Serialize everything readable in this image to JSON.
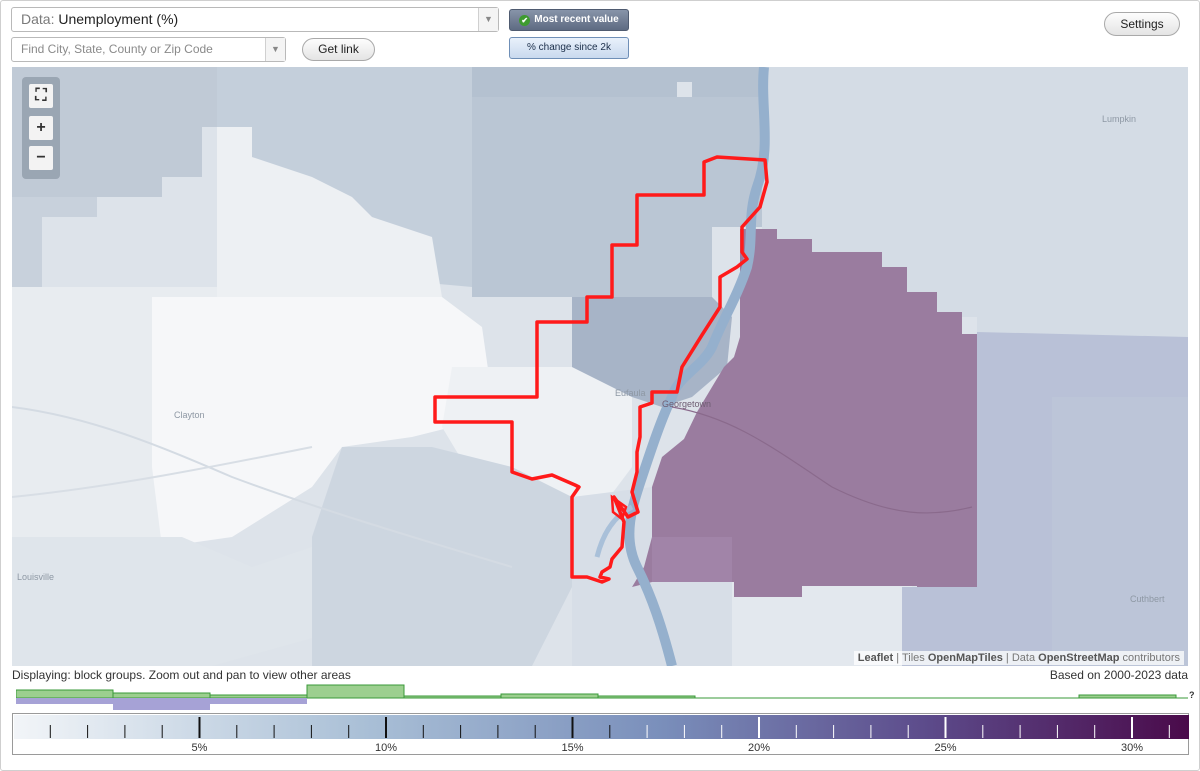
{
  "controls": {
    "data_label": "Data:",
    "data_value": "Unemployment (%)",
    "search_placeholder": "Find City, State, County or Zip Code",
    "get_link": "Get link",
    "settings": "Settings",
    "mode_recent": "Most recent value",
    "mode_change": "% change since 2k"
  },
  "map": {
    "towns": [
      "Lumpkin",
      "Clayton",
      "Eufaula",
      "Georgetown",
      "Louisville",
      "Cuthbert"
    ],
    "highlight_color": "#ff0000",
    "attribution": {
      "leaflet": "Leaflet",
      "tiles_prefix": "Tiles",
      "tiles": "OpenMapTiles",
      "data_prefix": "Data",
      "data": "OpenStreetMap",
      "suffix": "contributors"
    }
  },
  "legend": {
    "displaying": "Displaying: block groups. Zoom out and pan to view other areas",
    "based_on": "Based on 2000-2023 data",
    "missing_mark": "?",
    "tick_labels": [
      "5%",
      "10%",
      "15%",
      "20%",
      "25%",
      "30%"
    ],
    "gradient_start": "#f2f5f8",
    "gradient_end": "#4a0a4a"
  }
}
